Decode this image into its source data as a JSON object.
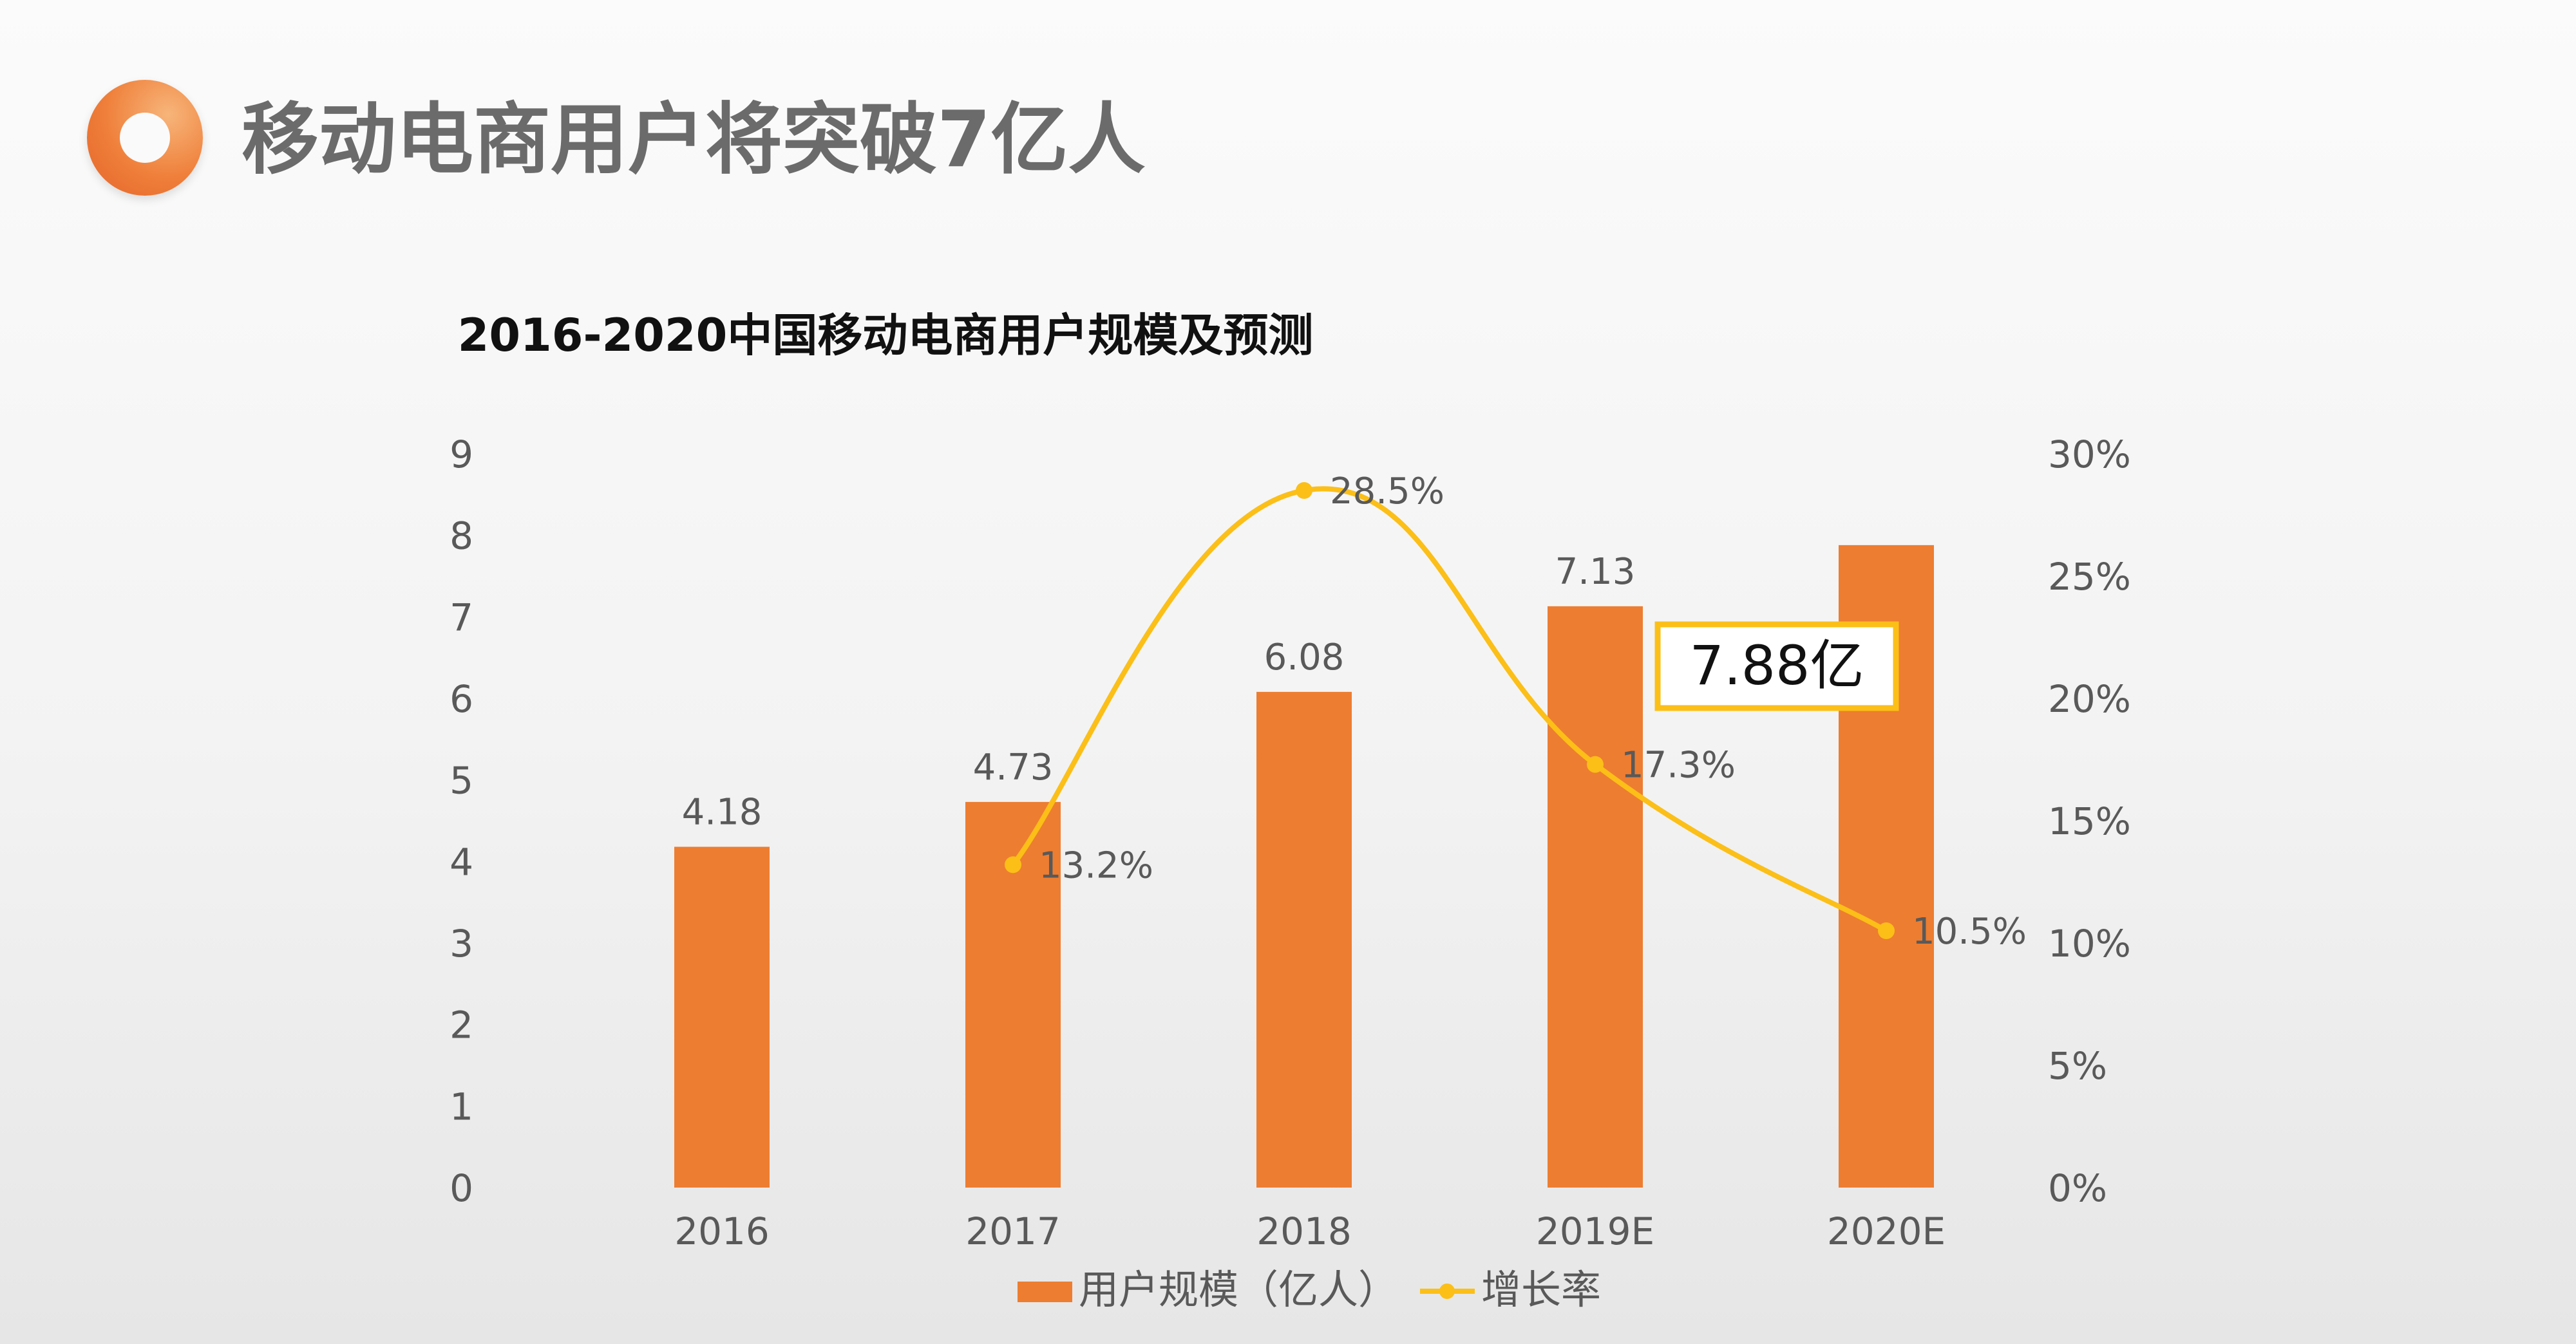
{
  "page": {
    "title": "移动电商用户将突破7亿人"
  },
  "chart_data": {
    "type": "bar+line",
    "title": "2016-2020中国移动电商用户规模及预测",
    "categories": [
      "2016",
      "2017",
      "2018",
      "2019E",
      "2020E"
    ],
    "series": [
      {
        "name": "用户规模（亿人）",
        "type": "bar",
        "axis": "left",
        "values": [
          4.18,
          4.73,
          6.08,
          7.13,
          7.88
        ],
        "labels": [
          "4.18",
          "4.73",
          "6.08",
          "7.13",
          null
        ],
        "color": "#ed7d31"
      },
      {
        "name": "增长率",
        "type": "line",
        "axis": "right",
        "values": [
          null,
          13.2,
          28.5,
          17.3,
          10.5
        ],
        "labels": [
          null,
          "13.2%",
          "28.5%",
          "17.3%",
          "10.5%"
        ],
        "color": "#fbbf18"
      }
    ],
    "left_axis": {
      "min": 0,
      "max": 9,
      "ticks": [
        "0",
        "1",
        "2",
        "3",
        "4",
        "5",
        "6",
        "7",
        "8",
        "9"
      ]
    },
    "right_axis": {
      "min": 0,
      "max": 30,
      "ticks": [
        "0%",
        "5%",
        "10%",
        "15%",
        "20%",
        "25%",
        "30%"
      ]
    },
    "annotation": {
      "text": "7.88亿",
      "category": "2020E",
      "border_color": "#fbbf18"
    },
    "legend": {
      "position": "bottom",
      "items": [
        "用户规模（亿人）",
        "增长率"
      ]
    },
    "grid": false
  }
}
